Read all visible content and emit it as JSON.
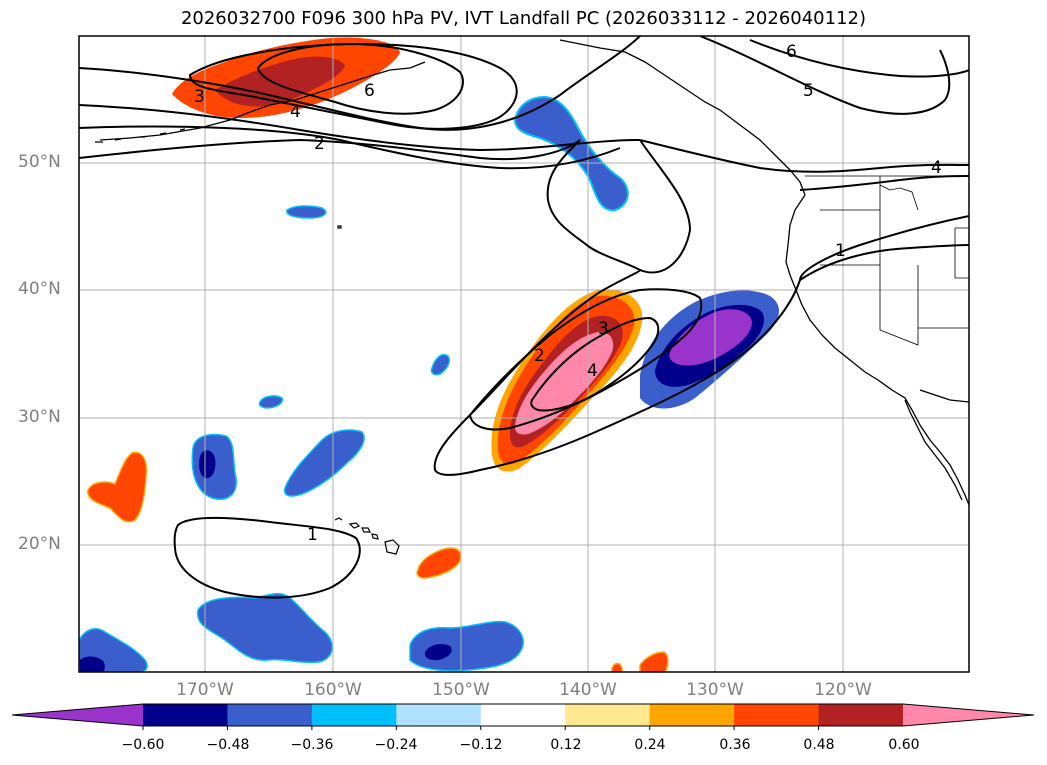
{
  "title": "2026032700 F096 300 hPa PV, IVT Landfall PC (2026033112 - 2026040112)",
  "map": {
    "lat_labels": [
      "50°N",
      "40°N",
      "30°N",
      "20°N"
    ],
    "lon_labels": [
      "170°W",
      "160°W",
      "150°W",
      "140°W",
      "130°W",
      "120°W"
    ],
    "contour_labels": [
      "3",
      "4",
      "6",
      "2",
      "6",
      "5",
      "4",
      "1",
      "2",
      "3",
      "4",
      "1"
    ]
  },
  "colorbar": {
    "ticks": [
      "−0.60",
      "−0.48",
      "−0.36",
      "−0.24",
      "−0.12",
      "0.12",
      "0.24",
      "0.36",
      "0.48",
      "0.60"
    ],
    "colors": [
      "#9933cc",
      "#00008b",
      "#3a5fcd",
      "#00bfff",
      "#b0e2ff",
      "#ffffff",
      "#ffe890",
      "#ffa500",
      "#ff4500",
      "#b22222",
      "#ff88aa"
    ]
  },
  "colors": {
    "negative_strong": "#9933cc",
    "negative_dark": "#00008b",
    "negative_mid": "#3a5fcd",
    "negative_light": "#00bfff",
    "positive_light": "#ffe890",
    "positive_mid": "#ffa500",
    "positive_red": "#ff4500",
    "positive_dark": "#b22222",
    "positive_pink": "#ff88aa"
  }
}
